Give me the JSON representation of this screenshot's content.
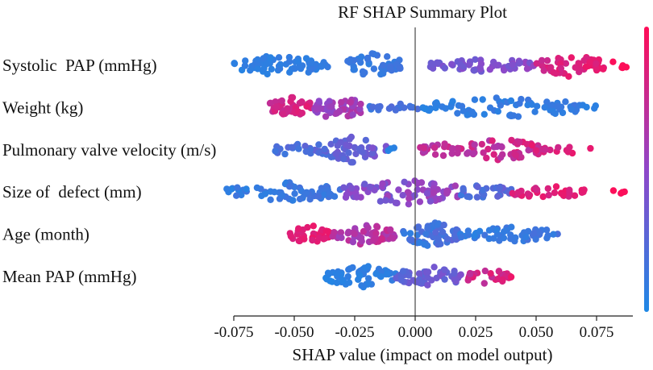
{
  "chart_data": {
    "type": "scatter",
    "subtype": "shap-beeswarm",
    "title": "RF SHAP Summary Plot",
    "xlabel": "SHAP value (impact on model output)",
    "ylabel": "",
    "xlim": [
      -0.085,
      0.095
    ],
    "xticks": [
      -0.075,
      -0.05,
      -0.025,
      0.0,
      0.025,
      0.05,
      0.075
    ],
    "xtick_labels": [
      "-0.075",
      "-0.050",
      "-0.025",
      "0.000",
      "0.025",
      "0.050",
      "0.075"
    ],
    "colorbar": {
      "low_color": "#1e88e5",
      "high_color": "#ff0d57"
    },
    "features": [
      {
        "name": "Systolic  PAP (mmHg)",
        "clusters": [
          {
            "from": -0.075,
            "to": -0.036,
            "color_from": 0.03,
            "color_to": 0.12,
            "n": 70,
            "spread": 0.8
          },
          {
            "from": -0.028,
            "to": -0.006,
            "color_from": 0.05,
            "color_to": 0.18,
            "n": 48,
            "spread": 0.95
          },
          {
            "from": 0.006,
            "to": 0.05,
            "color_from": 0.3,
            "color_to": 0.55,
            "n": 60,
            "spread": 0.55
          },
          {
            "from": 0.05,
            "to": 0.078,
            "color_from": 0.72,
            "color_to": 0.95,
            "n": 50,
            "spread": 0.85
          },
          {
            "from": 0.08,
            "to": 0.088,
            "color_from": 0.95,
            "color_to": 1.0,
            "n": 5,
            "spread": 0.4
          }
        ]
      },
      {
        "name": "Weight (kg)",
        "clusters": [
          {
            "from": -0.06,
            "to": -0.042,
            "color_from": 0.72,
            "color_to": 0.9,
            "n": 40,
            "spread": 0.8
          },
          {
            "from": -0.042,
            "to": -0.022,
            "color_from": 0.45,
            "color_to": 0.7,
            "n": 48,
            "spread": 0.95
          },
          {
            "from": -0.02,
            "to": 0.003,
            "color_from": 0.05,
            "color_to": 0.3,
            "n": 18,
            "spread": 0.3
          },
          {
            "from": 0.003,
            "to": 0.07,
            "color_from": 0.03,
            "color_to": 0.15,
            "n": 80,
            "spread": 0.8
          },
          {
            "from": 0.068,
            "to": 0.075,
            "color_from": 0.02,
            "color_to": 0.08,
            "n": 4,
            "spread": 0.3
          }
        ]
      },
      {
        "name": "Pulmonary valve velocity (m/s)",
        "clusters": [
          {
            "from": -0.06,
            "to": -0.04,
            "color_from": 0.1,
            "color_to": 0.3,
            "n": 20,
            "spread": 0.45
          },
          {
            "from": -0.04,
            "to": -0.012,
            "color_from": 0.15,
            "color_to": 0.45,
            "n": 55,
            "spread": 0.95
          },
          {
            "from": -0.012,
            "to": -0.007,
            "color_from": 0.02,
            "color_to": 0.08,
            "n": 3,
            "spread": 0.2
          },
          {
            "from": 0.001,
            "to": 0.02,
            "color_from": 0.6,
            "color_to": 0.85,
            "n": 25,
            "spread": 0.5
          },
          {
            "from": 0.02,
            "to": 0.052,
            "color_from": 0.55,
            "color_to": 0.95,
            "n": 55,
            "spread": 0.85
          },
          {
            "from": 0.052,
            "to": 0.075,
            "color_from": 0.75,
            "color_to": 0.95,
            "n": 12,
            "spread": 0.35
          }
        ]
      },
      {
        "name": "Size of  defect (mm)",
        "clusters": [
          {
            "from": -0.078,
            "to": -0.03,
            "color_from": 0.03,
            "color_to": 0.2,
            "n": 65,
            "spread": 0.75
          },
          {
            "from": -0.03,
            "to": 0.02,
            "color_from": 0.3,
            "color_to": 0.65,
            "n": 80,
            "spread": 0.95
          },
          {
            "from": 0.018,
            "to": 0.04,
            "color_from": 0.1,
            "color_to": 0.35,
            "n": 28,
            "spread": 0.6
          },
          {
            "from": 0.04,
            "to": 0.07,
            "color_from": 0.75,
            "color_to": 0.95,
            "n": 32,
            "spread": 0.5
          },
          {
            "from": 0.08,
            "to": 0.088,
            "color_from": 0.95,
            "color_to": 1.0,
            "n": 4,
            "spread": 0.3
          }
        ]
      },
      {
        "name": "Age (month)",
        "clusters": [
          {
            "from": -0.053,
            "to": -0.035,
            "color_from": 0.8,
            "color_to": 0.95,
            "n": 35,
            "spread": 0.7
          },
          {
            "from": -0.035,
            "to": -0.008,
            "color_from": 0.5,
            "color_to": 0.8,
            "n": 55,
            "spread": 0.8
          },
          {
            "from": -0.005,
            "to": 0.018,
            "color_from": 0.05,
            "color_to": 0.3,
            "n": 60,
            "spread": 0.95
          },
          {
            "from": 0.018,
            "to": 0.06,
            "color_from": 0.03,
            "color_to": 0.2,
            "n": 55,
            "spread": 0.6
          }
        ]
      },
      {
        "name": "Mean PAP (mmHg)",
        "clusters": [
          {
            "from": -0.037,
            "to": -0.008,
            "color_from": 0.02,
            "color_to": 0.12,
            "n": 60,
            "spread": 0.85
          },
          {
            "from": -0.008,
            "to": 0.02,
            "color_from": 0.2,
            "color_to": 0.45,
            "n": 55,
            "spread": 0.8
          },
          {
            "from": 0.02,
            "to": 0.04,
            "color_from": 0.65,
            "color_to": 0.95,
            "n": 30,
            "spread": 0.55
          }
        ]
      }
    ]
  }
}
